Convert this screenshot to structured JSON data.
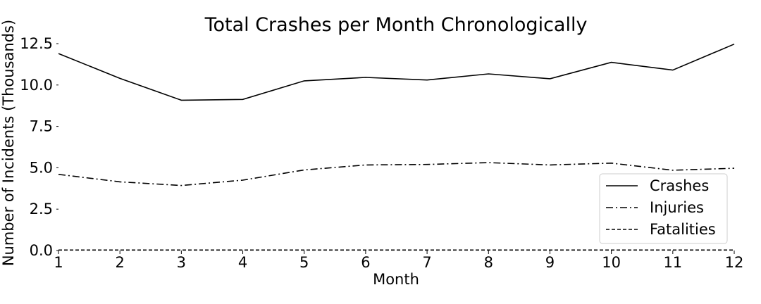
{
  "chart_data": {
    "type": "line",
    "title": "Total Crashes per Month Chronologically",
    "xlabel": "Month",
    "ylabel": "Number of Incidents (Thousands)",
    "x": [
      1,
      2,
      3,
      4,
      5,
      6,
      7,
      8,
      9,
      10,
      11,
      12
    ],
    "xticks": [
      "1",
      "2",
      "3",
      "4",
      "5",
      "6",
      "7",
      "8",
      "9",
      "10",
      "11",
      "12"
    ],
    "yticks": [
      "0.0",
      "2.5",
      "5.0",
      "7.5",
      "10.0",
      "12.5"
    ],
    "xlim": [
      1,
      12
    ],
    "ylim": [
      0,
      12.5
    ],
    "grid": false,
    "legend_position": "lower-right",
    "series": [
      {
        "name": "Crashes",
        "style": "solid",
        "color": "#000000",
        "values": [
          11.9,
          10.4,
          9.08,
          9.13,
          10.25,
          10.46,
          10.3,
          10.67,
          10.38,
          11.37,
          10.9,
          12.47
        ]
      },
      {
        "name": "Injuries",
        "style": "dashdot",
        "color": "#000000",
        "values": [
          4.6,
          4.15,
          3.93,
          4.25,
          4.87,
          5.17,
          5.2,
          5.31,
          5.17,
          5.28,
          4.85,
          4.97
        ]
      },
      {
        "name": "Fatalities",
        "style": "dashed",
        "color": "#000000",
        "values": [
          0.03,
          0.03,
          0.03,
          0.03,
          0.03,
          0.03,
          0.03,
          0.03,
          0.03,
          0.03,
          0.03,
          0.03
        ]
      }
    ]
  }
}
